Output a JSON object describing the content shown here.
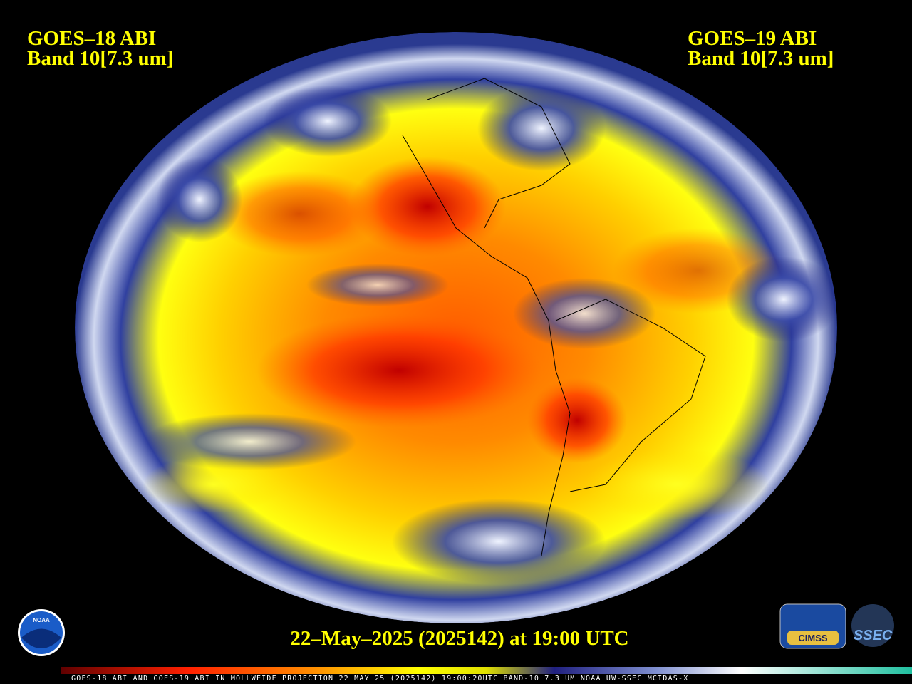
{
  "header": {
    "left": {
      "satellite": "GOES–18 ABI",
      "band": "Band 10[7.3 um]"
    },
    "right": {
      "satellite": "GOES–19 ABI",
      "band": "Band 10[7.3 um]"
    }
  },
  "timestamp": "22–May–2025 (2025142) at 19:00 UTC",
  "colorbar_caption": "GOES-18 ABI AND GOES-19 ABI IN MOLLWEIDE PROJECTION 22 MAY 25 (2025142) 19:00:20UTC BAND-10 7.3 UM NOAA UW-SSEC MCIDAS-X",
  "logos": {
    "noaa": "NOAA",
    "cimss": "CIMSS",
    "ssec": "SSEC"
  }
}
